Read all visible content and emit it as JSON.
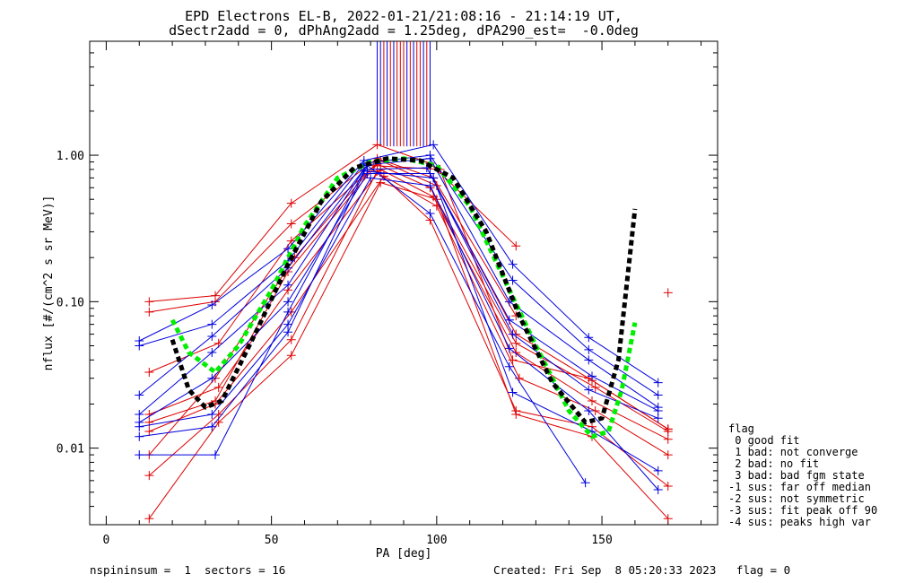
{
  "title": {
    "line1": "EPD Electrons EL-B, 2022-01-21/21:08:16 - 21:14:19 UT,",
    "line2": "dSectr2add = 0, dPhAng2add = 1.25deg, dPA290_est=  -0.0deg"
  },
  "footer": {
    "left": "nspininsum =  1  sectors = 16",
    "right": "Created: Fri Sep  8 05:20:33 2023   flag = 0"
  },
  "legend": {
    "title": "flag",
    "items": [
      " 0 good fit",
      " 1 bad: not converge",
      " 2 bad: no fit",
      " 3 bad: bad fgm state",
      "-1 sus: far off median",
      "-2 sus: not symmetric",
      "-3 sus: fit peak off 90",
      "-4 sus: peaks high var"
    ]
  },
  "chart_data": {
    "type": "line",
    "xlabel": "PA [deg]",
    "ylabel": "nflux [#/(cm^2 s sr MeV)]",
    "xlim": [
      -5,
      185
    ],
    "ylim": [
      0.003,
      6
    ],
    "yscale": "log",
    "xticks": [
      0,
      50,
      100,
      150
    ],
    "yticks": [
      {
        "v": 0.01,
        "label": "0.01"
      },
      {
        "v": 0.1,
        "label": "0.10"
      },
      {
        "v": 1,
        "label": "1.00"
      }
    ],
    "colors": {
      "red": "#dd0000",
      "blue": "#0000dd",
      "green": "#00ee00",
      "black": "#000000"
    },
    "spikes": {
      "blue": [
        82,
        83,
        85,
        87,
        91,
        93,
        96,
        98
      ],
      "red": [
        84,
        86,
        88,
        89,
        90,
        92,
        94,
        95,
        97
      ]
    },
    "series": [
      {
        "color": "red",
        "points": [
          [
            13,
            0.1
          ],
          [
            33,
            0.11
          ],
          [
            56,
            0.47
          ],
          [
            82,
            1.18
          ],
          [
            98,
            0.88
          ],
          [
            124,
            0.24
          ]
        ]
      },
      {
        "color": "red",
        "points": [
          [
            13,
            0.085
          ],
          [
            33,
            0.1
          ],
          [
            56,
            0.34
          ],
          [
            82,
            0.95
          ],
          [
            99,
            0.7
          ],
          [
            124,
            0.08
          ]
        ]
      },
      {
        "color": "red",
        "points": [
          [
            13,
            0.033
          ],
          [
            34,
            0.052
          ],
          [
            56,
            0.26
          ],
          [
            83,
            0.92
          ],
          [
            100,
            0.62
          ],
          [
            124,
            0.06
          ],
          [
            147,
            0.029
          ],
          [
            170,
            0.0135
          ]
        ]
      },
      {
        "color": "red",
        "points": [
          [
            13,
            0.015
          ],
          [
            33,
            0.021
          ],
          [
            55,
            0.16
          ],
          [
            82,
            0.87
          ],
          [
            98,
            0.6
          ],
          [
            124,
            0.052
          ],
          [
            148,
            0.026
          ],
          [
            170,
            0.013
          ]
        ]
      },
      {
        "color": "red",
        "points": [
          [
            13,
            0.017
          ],
          [
            34,
            0.026
          ],
          [
            55,
            0.12
          ],
          [
            83,
            0.8
          ],
          [
            99,
            0.52
          ],
          [
            124,
            0.045
          ],
          [
            147,
            0.021
          ],
          [
            170,
            0.0115
          ]
        ]
      },
      {
        "color": "red",
        "points": [
          [
            13,
            0.013
          ],
          [
            33,
            0.02
          ],
          [
            56,
            0.085
          ],
          [
            84,
            0.72
          ],
          [
            100,
            0.45
          ],
          [
            125,
            0.03
          ],
          [
            148,
            0.018
          ],
          [
            170,
            0.009
          ]
        ]
      },
      {
        "color": "red",
        "points": [
          [
            13,
            0.0065
          ],
          [
            34,
            0.017
          ],
          [
            56,
            0.055
          ],
          [
            82,
            0.78
          ],
          [
            98,
            0.36
          ],
          [
            124,
            0.018
          ],
          [
            147,
            0.014
          ],
          [
            170,
            0.0055
          ]
        ]
      },
      {
        "color": "red",
        "points": [
          [
            13,
            0.0033
          ],
          [
            34,
            0.015
          ],
          [
            56,
            0.043
          ],
          [
            83,
            0.65
          ],
          [
            100,
            0.5
          ],
          [
            124,
            0.017
          ],
          [
            147,
            0.012
          ],
          [
            170,
            0.0033
          ]
        ]
      },
      {
        "color": "red",
        "points": [
          [
            13,
            0.009
          ],
          [
            33,
            0.03
          ],
          [
            57,
            0.2
          ],
          [
            81,
            0.85
          ],
          [
            101,
            0.8
          ],
          [
            123,
            0.04
          ],
          [
            146,
            0.03
          ],
          [
            170,
            0.0135
          ]
        ]
      },
      {
        "color": "red",
        "points": [
          [
            170,
            0.115
          ]
        ]
      },
      {
        "color": "blue",
        "points": [
          [
            10,
            0.054
          ],
          [
            32,
            0.095
          ],
          [
            55,
            0.23
          ],
          [
            78,
            0.92
          ],
          [
            99,
            1.18
          ],
          [
            123,
            0.18
          ],
          [
            146,
            0.057
          ],
          [
            167,
            0.028
          ]
        ]
      },
      {
        "color": "blue",
        "points": [
          [
            10,
            0.05
          ],
          [
            32,
            0.07
          ],
          [
            55,
            0.19
          ],
          [
            78,
            0.88
          ],
          [
            98,
            1.0
          ],
          [
            123,
            0.14
          ],
          [
            146,
            0.047
          ],
          [
            167,
            0.023
          ]
        ]
      },
      {
        "color": "blue",
        "points": [
          [
            10,
            0.023
          ],
          [
            32,
            0.058
          ],
          [
            55,
            0.17
          ],
          [
            79,
            0.86
          ],
          [
            98,
            0.95
          ],
          [
            122,
            0.1
          ],
          [
            146,
            0.04
          ],
          [
            167,
            0.019
          ]
        ]
      },
      {
        "color": "blue",
        "points": [
          [
            10,
            0.017
          ],
          [
            32,
            0.045
          ],
          [
            55,
            0.13
          ],
          [
            78,
            0.8
          ],
          [
            97,
            0.82
          ],
          [
            122,
            0.075
          ],
          [
            147,
            0.031
          ],
          [
            167,
            0.018
          ]
        ]
      },
      {
        "color": "blue",
        "points": [
          [
            10,
            0.015
          ],
          [
            32,
            0.03
          ],
          [
            55,
            0.1
          ],
          [
            79,
            0.75
          ],
          [
            98,
            0.75
          ],
          [
            123,
            0.06
          ],
          [
            146,
            0.025
          ],
          [
            167,
            0.016
          ]
        ]
      },
      {
        "color": "blue",
        "points": [
          [
            10,
            0.014
          ],
          [
            32,
            0.017
          ],
          [
            55,
            0.07
          ],
          [
            80,
            0.7
          ],
          [
            98,
            0.62
          ],
          [
            122,
            0.048
          ],
          [
            146,
            0.018
          ],
          [
            167,
            0.0052
          ]
        ]
      },
      {
        "color": "blue",
        "points": [
          [
            10,
            0.012
          ],
          [
            32,
            0.014
          ],
          [
            55,
            0.062
          ],
          [
            79,
            0.85
          ],
          [
            98,
            0.4
          ],
          [
            122,
            0.036
          ],
          [
            145,
            0.0058
          ]
        ]
      },
      {
        "color": "blue",
        "points": [
          [
            10,
            0.009
          ],
          [
            33,
            0.009
          ],
          [
            55,
            0.085
          ],
          [
            78,
            0.78
          ],
          [
            99,
            0.7
          ],
          [
            123,
            0.024
          ],
          [
            147,
            0.013
          ],
          [
            167,
            0.007
          ]
        ]
      },
      {
        "color": "green",
        "dashed": true,
        "width": 5,
        "points": [
          [
            20,
            0.075
          ],
          [
            25,
            0.045
          ],
          [
            33,
            0.033
          ],
          [
            40,
            0.05
          ],
          [
            50,
            0.12
          ],
          [
            60,
            0.33
          ],
          [
            70,
            0.7
          ],
          [
            80,
            0.9
          ],
          [
            90,
            0.95
          ],
          [
            100,
            0.85
          ],
          [
            110,
            0.45
          ],
          [
            120,
            0.15
          ],
          [
            130,
            0.05
          ],
          [
            140,
            0.018
          ],
          [
            147,
            0.012
          ],
          [
            152,
            0.013
          ],
          [
            156,
            0.025
          ],
          [
            160,
            0.072
          ]
        ]
      },
      {
        "color": "black",
        "dashed": true,
        "width": 5,
        "points": [
          [
            20,
            0.055
          ],
          [
            25,
            0.025
          ],
          [
            30,
            0.019
          ],
          [
            35,
            0.021
          ],
          [
            45,
            0.06
          ],
          [
            55,
            0.18
          ],
          [
            65,
            0.48
          ],
          [
            75,
            0.82
          ],
          [
            85,
            0.95
          ],
          [
            95,
            0.92
          ],
          [
            105,
            0.7
          ],
          [
            115,
            0.3
          ],
          [
            125,
            0.08
          ],
          [
            135,
            0.028
          ],
          [
            145,
            0.015
          ],
          [
            150,
            0.016
          ],
          [
            155,
            0.04
          ],
          [
            160,
            0.43
          ]
        ]
      }
    ]
  }
}
